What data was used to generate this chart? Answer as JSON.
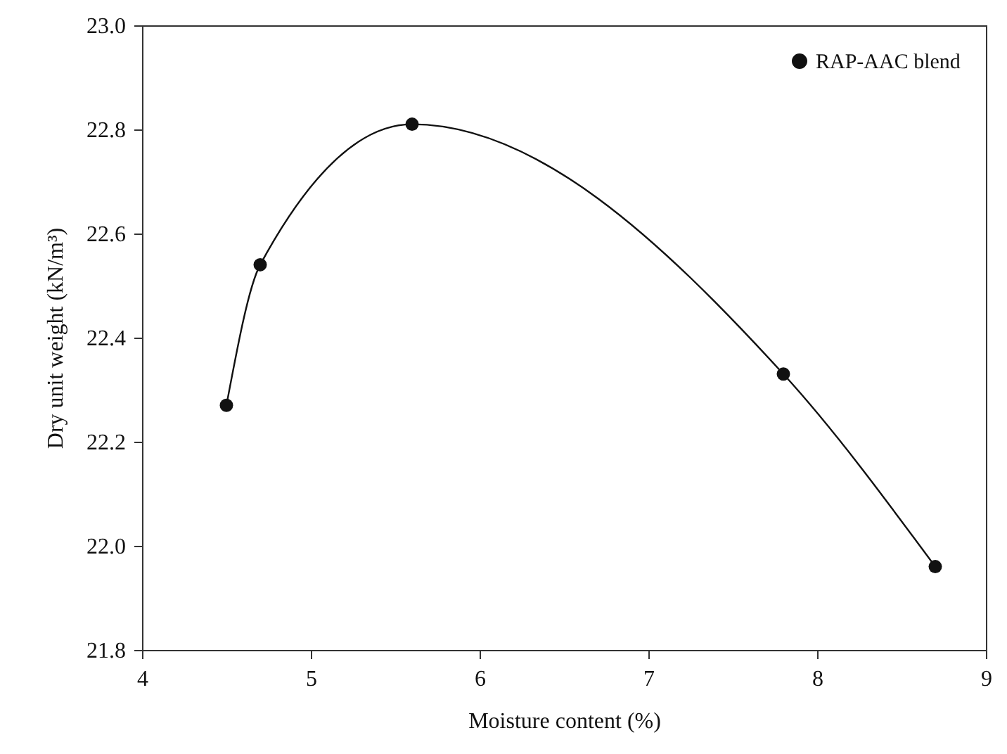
{
  "chart_data": {
    "type": "line",
    "xlabel": "Moisture content (%)",
    "ylabel": "Dry unit weight (kN/m³)",
    "x": [
      4.5,
      4.7,
      5.6,
      7.8,
      8.7
    ],
    "series": [
      {
        "name": "RAP-AAC blend",
        "color": "#111111",
        "values": [
          22.27,
          22.54,
          22.81,
          22.33,
          21.96
        ]
      }
    ],
    "xlim": [
      4,
      9
    ],
    "xticks": [
      4,
      5,
      6,
      7,
      8,
      9
    ],
    "ylim": [
      21.8,
      23.0
    ],
    "yticks": [
      {
        "value": 21.8,
        "label": "21.8"
      },
      {
        "value": 22.0,
        "label": "22.0"
      },
      {
        "value": 22.2,
        "label": "22.2"
      },
      {
        "value": 22.4,
        "label": "22.4"
      },
      {
        "value": 22.6,
        "label": "22.6"
      },
      {
        "value": 22.8,
        "label": "22.8"
      },
      {
        "value": 23.0,
        "label": "23.0"
      }
    ],
    "marker": "circle",
    "line_style": "solid",
    "legend": "top right"
  }
}
